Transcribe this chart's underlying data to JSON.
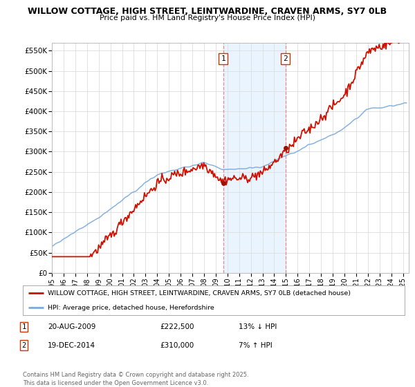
{
  "title_line1": "WILLOW COTTAGE, HIGH STREET, LEINTWARDINE, CRAVEN ARMS, SY7 0LB",
  "title_line2": "Price paid vs. HM Land Registry's House Price Index (HPI)",
  "ylim": [
    0,
    570000
  ],
  "yticks": [
    0,
    50000,
    100000,
    150000,
    200000,
    250000,
    300000,
    350000,
    400000,
    450000,
    500000,
    550000
  ],
  "ytick_labels": [
    "£0",
    "£50K",
    "£100K",
    "£150K",
    "£200K",
    "£250K",
    "£300K",
    "£350K",
    "£400K",
    "£450K",
    "£500K",
    "£550K"
  ],
  "xlim_start": 1995.0,
  "xlim_end": 2025.5,
  "xticks": [
    1995,
    1996,
    1997,
    1998,
    1999,
    2000,
    2001,
    2002,
    2003,
    2004,
    2005,
    2006,
    2007,
    2008,
    2009,
    2010,
    2011,
    2012,
    2013,
    2014,
    2015,
    2016,
    2017,
    2018,
    2019,
    2020,
    2021,
    2022,
    2023,
    2024,
    2025
  ],
  "hpi_color": "#7aaadd",
  "price_color": "#cc1100",
  "marker_color": "#991100",
  "purchase1_date": 2009.64,
  "purchase1_price": 222500,
  "purchase2_date": 2014.97,
  "purchase2_price": 310000,
  "shading_color": "#ddeeff",
  "shading_alpha": 0.6,
  "vline_color": "#ee8888",
  "legend_property": "WILLOW COTTAGE, HIGH STREET, LEINTWARDINE, CRAVEN ARMS, SY7 0LB (detached house)",
  "legend_hpi": "HPI: Average price, detached house, Herefordshire",
  "table_row1": [
    "1",
    "20-AUG-2009",
    "£222,500",
    "13% ↓ HPI"
  ],
  "table_row2": [
    "2",
    "19-DEC-2014",
    "£310,000",
    "7% ↑ HPI"
  ],
  "footer": "Contains HM Land Registry data © Crown copyright and database right 2025.\nThis data is licensed under the Open Government Licence v3.0.",
  "background_color": "#ffffff",
  "grid_color": "#dddddd"
}
